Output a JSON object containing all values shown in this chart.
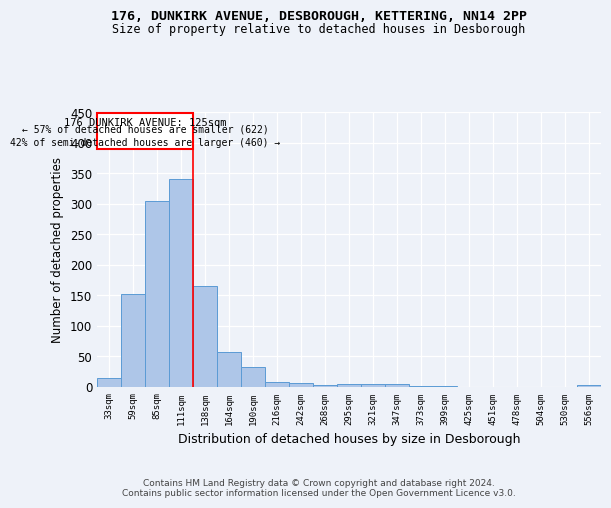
{
  "title1": "176, DUNKIRK AVENUE, DESBOROUGH, KETTERING, NN14 2PP",
  "title2": "Size of property relative to detached houses in Desborough",
  "xlabel": "Distribution of detached houses by size in Desborough",
  "ylabel": "Number of detached properties",
  "bin_labels": [
    "33sqm",
    "59sqm",
    "85sqm",
    "111sqm",
    "138sqm",
    "164sqm",
    "190sqm",
    "216sqm",
    "242sqm",
    "268sqm",
    "295sqm",
    "321sqm",
    "347sqm",
    "373sqm",
    "399sqm",
    "425sqm",
    "451sqm",
    "478sqm",
    "504sqm",
    "530sqm",
    "556sqm"
  ],
  "bar_values": [
    15,
    153,
    305,
    340,
    165,
    57,
    33,
    9,
    6,
    3,
    5,
    5,
    5,
    2,
    1,
    0,
    0,
    0,
    0,
    0,
    4
  ],
  "bar_color": "#aec6e8",
  "bar_edge_color": "#5b9bd5",
  "property_bin_index": 3,
  "red_line_label": "176 DUNKIRK AVENUE: 125sqm",
  "annotation_line1": "← 57% of detached houses are smaller (622)",
  "annotation_line2": "42% of semi-detached houses are larger (460) →",
  "footer1": "Contains HM Land Registry data © Crown copyright and database right 2024.",
  "footer2": "Contains public sector information licensed under the Open Government Licence v3.0.",
  "ylim": [
    0,
    450
  ],
  "yticks": [
    0,
    50,
    100,
    150,
    200,
    250,
    300,
    350,
    400,
    450
  ],
  "background_color": "#eef2f9",
  "grid_color": "#ffffff"
}
